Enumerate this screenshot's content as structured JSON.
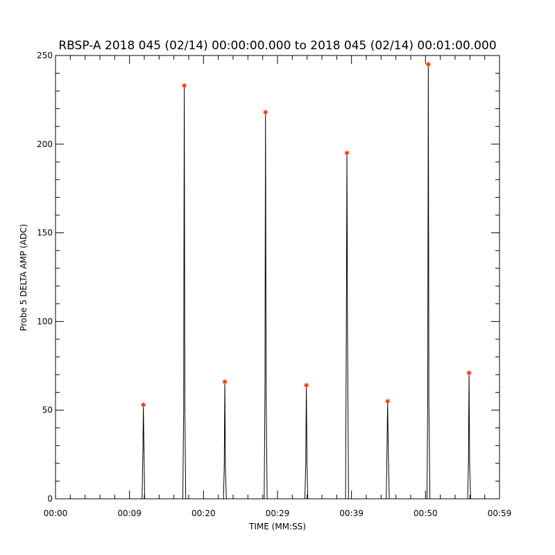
{
  "chart_data": {
    "type": "line",
    "title": "RBSP-A 2018 045 (02/14) 00:00:00.000 to 2018 045 (02/14) 00:01:00.000",
    "xlabel": "TIME (MM:SS)",
    "ylabel": "Probe 5 DELTA AMP (ADC)",
    "xlim": [
      0,
      60
    ],
    "ylim": [
      0,
      250
    ],
    "x_unit": "seconds",
    "x_ticks": [
      0,
      10,
      20,
      30,
      40,
      50,
      60
    ],
    "x_tick_labels": [
      "00:00",
      "00:09",
      "00:20",
      "00:29",
      "00:39",
      "00:50",
      "00:59"
    ],
    "y_ticks": [
      0,
      50,
      100,
      150,
      200,
      250
    ],
    "y_tick_labels": [
      "0",
      "50",
      "100",
      "150",
      "200",
      "250"
    ],
    "line_color": "#000000",
    "marker_color": "#ff2a00",
    "marker_symbol": "asterisk",
    "grid": false,
    "series": [
      {
        "x": [
          0,
          10.1,
          11.7,
          11.82,
          11.87,
          11.95,
          12.05,
          17.2,
          17.32,
          17.4,
          17.48,
          17.6,
          22.7,
          22.8,
          22.88,
          22.96,
          23.1,
          28.2,
          28.3,
          28.38,
          28.46,
          28.6,
          33.7,
          33.82,
          33.9,
          33.98,
          34.1,
          39.2,
          39.3,
          39.38,
          39.46,
          39.6,
          44.7,
          44.8,
          44.88,
          44.96,
          45.1,
          50.2,
          50.3,
          50.38,
          50.46,
          50.6,
          55.7,
          55.8,
          55.88,
          55.96,
          56.1,
          60
        ],
        "y": [
          0,
          0,
          0,
          30,
          53,
          30,
          0,
          0,
          50,
          233,
          50,
          0,
          0,
          17,
          66,
          17,
          0,
          0,
          58,
          218,
          58,
          0,
          0,
          20,
          64,
          20,
          0,
          0,
          95,
          195,
          95,
          0,
          0,
          30,
          55,
          30,
          0,
          0,
          55,
          245,
          55,
          0,
          0,
          20,
          71,
          20,
          0,
          0
        ]
      }
    ],
    "peaks": {
      "x": [
        11.87,
        17.4,
        22.88,
        28.38,
        33.9,
        39.38,
        44.88,
        50.38,
        55.88
      ],
      "y": [
        53,
        233,
        66,
        218,
        64,
        195,
        55,
        245,
        71
      ]
    }
  }
}
